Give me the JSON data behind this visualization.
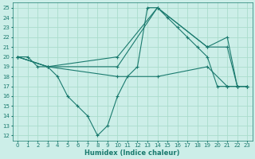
{
  "xlabel": "Humidex (Indice chaleur)",
  "bg_color": "#cceee8",
  "grid_color": "#aaddcc",
  "line_color": "#1a7a6e",
  "xlim": [
    -0.5,
    23.5
  ],
  "ylim": [
    11.5,
    25.5
  ],
  "xticks": [
    0,
    1,
    2,
    3,
    4,
    5,
    6,
    7,
    8,
    9,
    10,
    11,
    12,
    13,
    14,
    15,
    16,
    17,
    18,
    19,
    20,
    21,
    22,
    23
  ],
  "yticks": [
    12,
    13,
    14,
    15,
    16,
    17,
    18,
    19,
    20,
    21,
    22,
    23,
    24,
    25
  ],
  "series": [
    {
      "x": [
        0,
        1,
        2,
        3,
        4,
        5,
        6,
        7,
        8,
        9,
        10,
        11,
        12,
        13,
        14,
        15,
        16,
        17,
        18,
        19,
        20,
        21,
        22,
        23
      ],
      "y": [
        20,
        20,
        19,
        19,
        18,
        16,
        15,
        14,
        12,
        13,
        16,
        18,
        19,
        25,
        25,
        24,
        23,
        22,
        21,
        20,
        17,
        17,
        17,
        17
      ]
    },
    {
      "x": [
        0,
        3,
        10,
        14,
        19,
        21,
        22,
        23
      ],
      "y": [
        20,
        19,
        18,
        18,
        19,
        17,
        17,
        17
      ]
    },
    {
      "x": [
        0,
        3,
        10,
        14,
        19,
        21,
        22,
        23
      ],
      "y": [
        20,
        19,
        20,
        25,
        21,
        22,
        17,
        17
      ]
    },
    {
      "x": [
        0,
        3,
        10,
        14,
        19,
        21,
        22,
        23
      ],
      "y": [
        20,
        19,
        19,
        25,
        21,
        21,
        17,
        17
      ]
    }
  ]
}
